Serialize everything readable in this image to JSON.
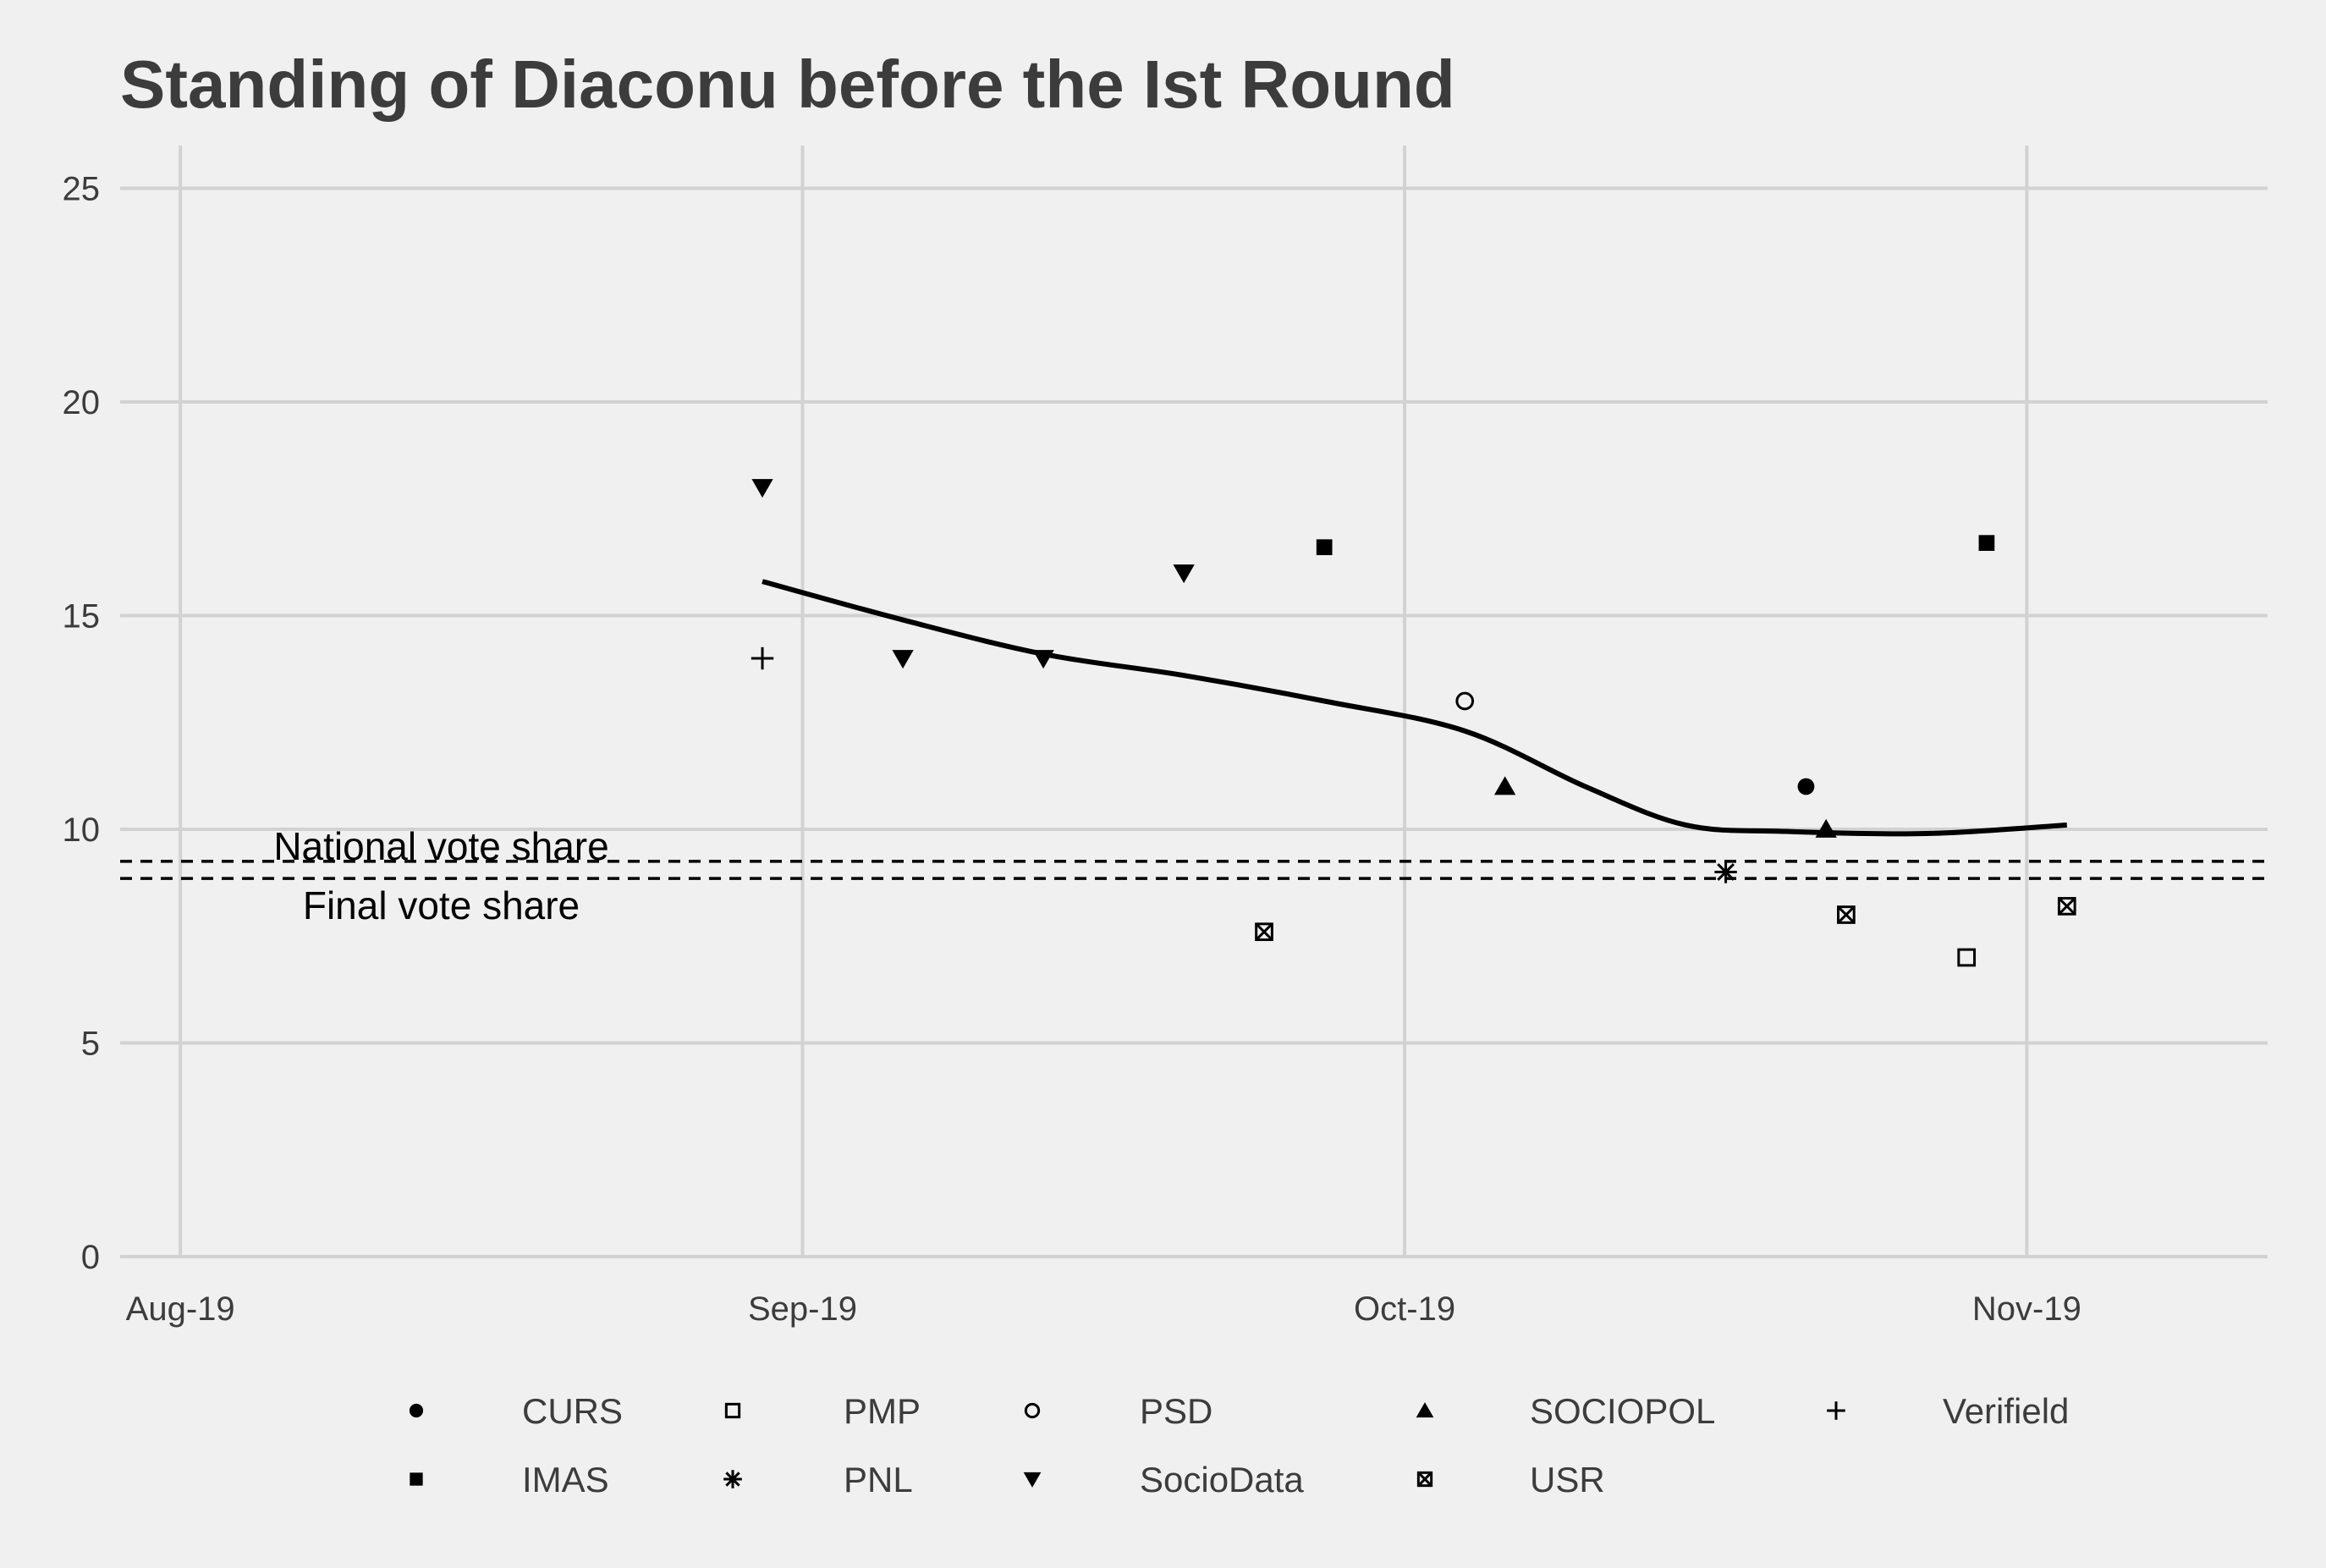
{
  "chart_data": {
    "type": "scatter",
    "title": "Standing of Diaconu before the Ist Round",
    "xlabel": "",
    "ylabel": "",
    "ylim": [
      0,
      26
    ],
    "xlim": [
      "2019-07-29",
      "2019-11-13"
    ],
    "y_ticks": [
      0,
      5,
      10,
      15,
      20,
      25
    ],
    "x_ticks": [
      {
        "date": "2019-08-01",
        "label": "Aug-19"
      },
      {
        "date": "2019-09-01",
        "label": "Sep-19"
      },
      {
        "date": "2019-10-01",
        "label": "Oct-19"
      },
      {
        "date": "2019-11-01",
        "label": "Nov-19"
      }
    ],
    "grid": true,
    "legend_position": "bottom",
    "series": [
      {
        "name": "CURS",
        "shape": "circle-filled",
        "points": [
          {
            "x": "2019-10-21",
            "y": 11
          }
        ]
      },
      {
        "name": "IMAS",
        "shape": "square-filled",
        "points": [
          {
            "x": "2019-09-27",
            "y": 16.6
          },
          {
            "x": "2019-10-30",
            "y": 16.7
          }
        ]
      },
      {
        "name": "PMP",
        "shape": "square-open",
        "points": [
          {
            "x": "2019-10-29",
            "y": 7
          }
        ]
      },
      {
        "name": "PNL",
        "shape": "asterisk",
        "points": [
          {
            "x": "2019-10-17",
            "y": 9
          }
        ]
      },
      {
        "name": "PSD",
        "shape": "circle-open",
        "points": [
          {
            "x": "2019-10-04",
            "y": 13
          }
        ]
      },
      {
        "name": "SocioData",
        "shape": "triangle-down",
        "points": [
          {
            "x": "2019-08-30",
            "y": 18
          },
          {
            "x": "2019-09-06",
            "y": 14
          },
          {
            "x": "2019-09-13",
            "y": 14
          },
          {
            "x": "2019-09-20",
            "y": 16
          }
        ]
      },
      {
        "name": "SOCIOPOL",
        "shape": "triangle-up",
        "points": [
          {
            "x": "2019-10-06",
            "y": 11
          },
          {
            "x": "2019-10-22",
            "y": 10
          }
        ]
      },
      {
        "name": "USR",
        "shape": "square-cross",
        "points": [
          {
            "x": "2019-09-24",
            "y": 7.6
          },
          {
            "x": "2019-10-23",
            "y": 8
          },
          {
            "x": "2019-11-03",
            "y": 8.2
          }
        ]
      },
      {
        "name": "Verifield",
        "shape": "plus",
        "points": [
          {
            "x": "2019-08-30",
            "y": 14
          }
        ]
      }
    ],
    "trend_line": [
      {
        "x": "2019-08-30",
        "y": 15.8
      },
      {
        "x": "2019-09-06",
        "y": 14.9
      },
      {
        "x": "2019-09-13",
        "y": 14.1
      },
      {
        "x": "2019-09-20",
        "y": 13.6
      },
      {
        "x": "2019-09-27",
        "y": 13.0
      },
      {
        "x": "2019-10-04",
        "y": 12.3
      },
      {
        "x": "2019-10-10",
        "y": 11.0
      },
      {
        "x": "2019-10-15",
        "y": 10.1
      },
      {
        "x": "2019-10-20",
        "y": 9.95
      },
      {
        "x": "2019-10-27",
        "y": 9.9
      },
      {
        "x": "2019-11-03",
        "y": 10.1
      }
    ],
    "reference_lines": [
      {
        "label": "National vote share",
        "y": 9.25,
        "label_x": "2019-08-14"
      },
      {
        "label": "Final vote share",
        "y": 8.85,
        "label_x": "2019-08-14"
      }
    ],
    "legend": {
      "rows": [
        [
          "CURS",
          "PMP",
          "PSD",
          "SOCIOPOL",
          "Verifield"
        ],
        [
          "IMAS",
          "PNL",
          "SocioData",
          "USR"
        ]
      ]
    }
  }
}
